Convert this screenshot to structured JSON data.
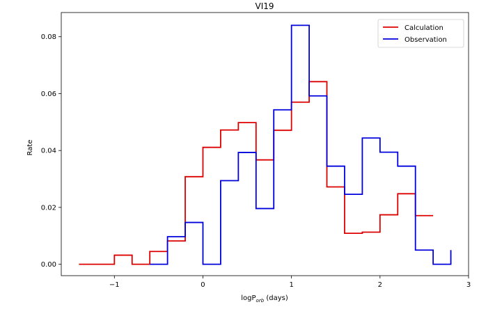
{
  "chart_data": {
    "type": "line",
    "step": "post",
    "title": "VI19",
    "xlabel": "logP",
    "xlabel_subscript": "orb",
    "xlabel_suffix": " (days)",
    "ylabel": "Rate",
    "xlim": [
      -1.6,
      3.0
    ],
    "ylim": [
      -0.004,
      0.0885
    ],
    "xticks": [
      -1,
      0,
      1,
      2,
      3
    ],
    "xtick_labels": [
      "−1",
      "0",
      "1",
      "2",
      "3"
    ],
    "yticks": [
      0.0,
      0.02,
      0.04,
      0.06,
      0.08
    ],
    "ytick_labels": [
      "0.00",
      "0.02",
      "0.04",
      "0.06",
      "0.08"
    ],
    "legend_position": "top-right",
    "series": [
      {
        "name": "Calculation",
        "color": "#dd0000",
        "x": [
          -1.4,
          -1.2,
          -1.0,
          -0.8,
          -0.6,
          -0.4,
          -0.2,
          0.0,
          0.2,
          0.4,
          0.6,
          0.8,
          1.0,
          1.2,
          1.4,
          1.6,
          1.8,
          2.0,
          2.2,
          2.4,
          2.6
        ],
        "y": [
          0.0,
          0.0,
          0.0032,
          0.0,
          0.0045,
          0.0082,
          0.0308,
          0.0411,
          0.0472,
          0.0498,
          0.0367,
          0.0471,
          0.057,
          0.0642,
          0.0272,
          0.0109,
          0.0113,
          0.0174,
          0.0248,
          0.0171,
          0.0171
        ]
      },
      {
        "name": "Observation",
        "color": "#0000dd",
        "x": [
          -0.6,
          -0.4,
          -0.2,
          0.0,
          0.2,
          0.4,
          0.6,
          0.8,
          1.0,
          1.2,
          1.4,
          1.6,
          1.8,
          2.0,
          2.2,
          2.4,
          2.6,
          2.8
        ],
        "y": [
          0.0,
          0.0097,
          0.0147,
          0.0,
          0.0294,
          0.0393,
          0.0196,
          0.0543,
          0.084,
          0.0592,
          0.0345,
          0.0246,
          0.0444,
          0.0394,
          0.0345,
          0.005,
          0.0,
          0.005
        ]
      }
    ]
  }
}
